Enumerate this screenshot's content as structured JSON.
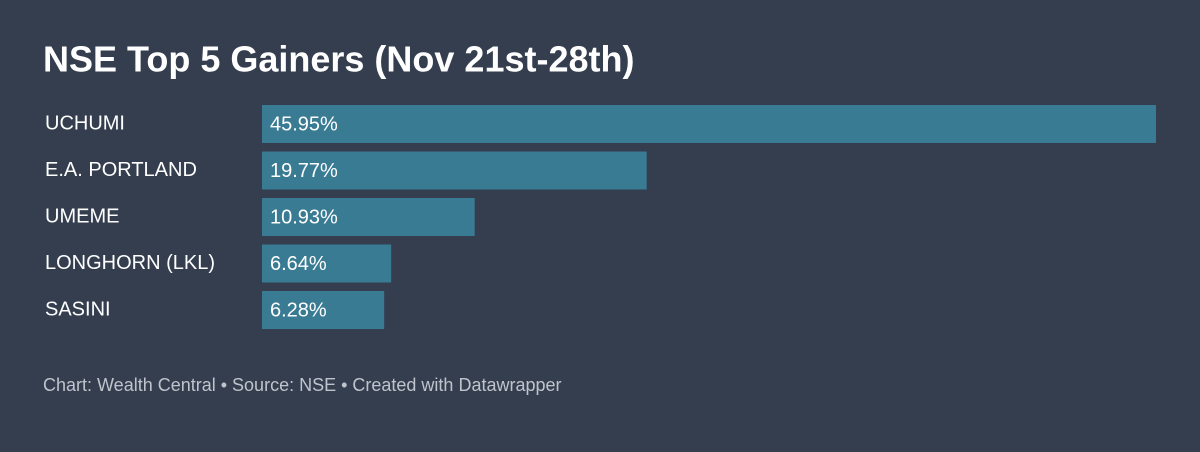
{
  "chart_data": {
    "type": "bar",
    "orientation": "horizontal",
    "title": "NSE Top 5 Gainers (Nov 21st-28th)",
    "categories": [
      "UCHUMI",
      "E.A. PORTLAND",
      "UMEME",
      "LONGHORN (LKL)",
      "SASINI"
    ],
    "values": [
      45.95,
      19.77,
      10.93,
      6.64,
      6.28
    ],
    "value_labels": [
      "45.95%",
      "19.77%",
      "10.93%",
      "6.64%",
      "6.28%"
    ],
    "color": "#3a7b94",
    "footer": "Chart: Wealth Central • Source: NSE • Created with Datawrapper"
  }
}
